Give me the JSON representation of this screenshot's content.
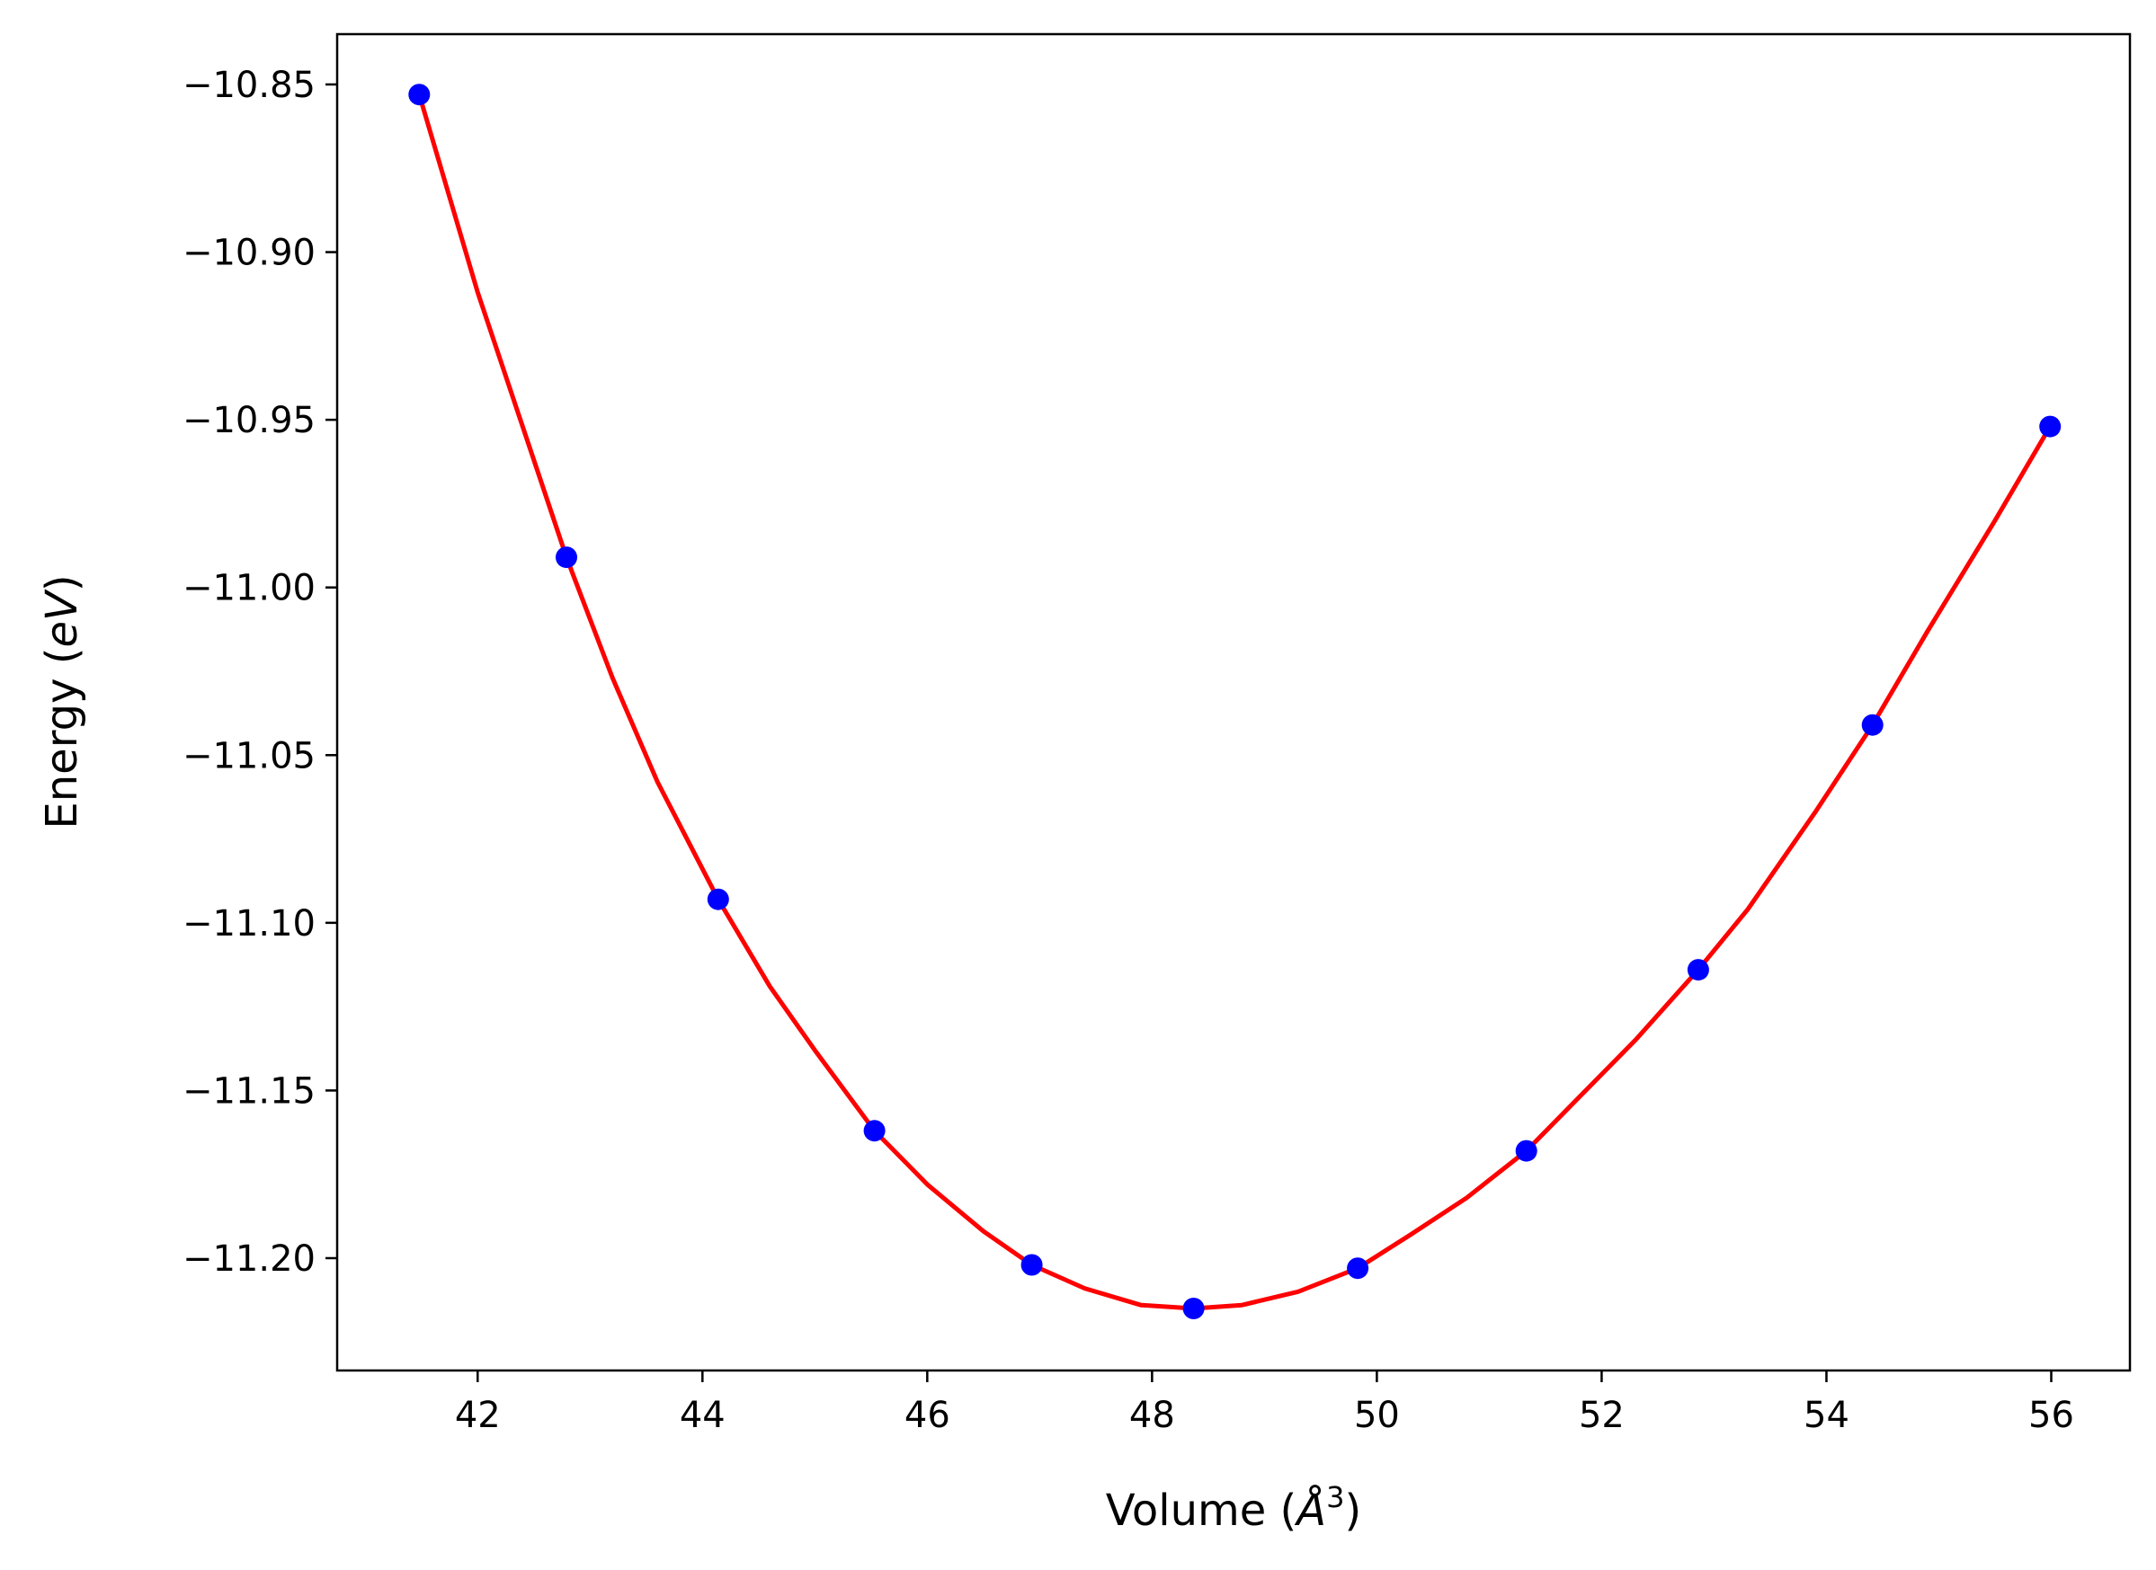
{
  "chart_data": {
    "type": "scatter",
    "title": "",
    "xlabel": "Volume (",
    "xlabel_italic": "Å",
    "xlabel_sup": "3",
    "xlabel_close": ")",
    "ylabel": "Energy (",
    "ylabel_italic": "eV",
    "ylabel_close": ")",
    "xlim": [
      40.75,
      56.7
    ],
    "ylim": [
      -11.2335,
      -10.835
    ],
    "xticks": [
      42,
      44,
      46,
      48,
      50,
      52,
      54,
      56
    ],
    "xtick_labels": [
      "42",
      "44",
      "46",
      "48",
      "50",
      "52",
      "54",
      "56"
    ],
    "yticks": [
      -10.85,
      -10.9,
      -10.95,
      -11.0,
      -11.05,
      -11.1,
      -11.15,
      -11.2
    ],
    "ytick_labels": [
      "−10.85",
      "−10.90",
      "−10.95",
      "−11.00",
      "−11.05",
      "−11.10",
      "−11.15",
      "−11.20"
    ],
    "grid": false,
    "series": [
      {
        "kind": "points",
        "color": "#0000ff",
        "x": [
          41.48,
          42.79,
          44.14,
          45.53,
          46.93,
          48.37,
          49.83,
          51.33,
          52.86,
          54.41,
          55.99
        ],
        "y": [
          -10.853,
          -10.991,
          -11.093,
          -11.162,
          -11.202,
          -11.215,
          -11.203,
          -11.168,
          -11.114,
          -11.041,
          -10.952
        ]
      },
      {
        "kind": "fit-curve",
        "color": "#ff0000",
        "x": [
          41.48,
          42.0,
          42.5,
          42.79,
          43.2,
          43.6,
          44.14,
          44.6,
          45.0,
          45.53,
          46.0,
          46.5,
          46.93,
          47.4,
          47.9,
          48.37,
          48.8,
          49.3,
          49.83,
          50.3,
          50.8,
          51.33,
          51.8,
          52.3,
          52.86,
          53.3,
          53.9,
          54.41,
          54.9,
          55.5,
          55.99
        ],
        "y": [
          -10.853,
          -10.912,
          -10.962,
          -10.991,
          -11.027,
          -11.058,
          -11.093,
          -11.119,
          -11.138,
          -11.162,
          -11.178,
          -11.192,
          -11.202,
          -11.209,
          -11.214,
          -11.215,
          -11.214,
          -11.21,
          -11.203,
          -11.193,
          -11.182,
          -11.168,
          -11.152,
          -11.135,
          -11.114,
          -11.096,
          -11.067,
          -11.041,
          -11.013,
          -10.98,
          -10.952
        ]
      }
    ]
  }
}
